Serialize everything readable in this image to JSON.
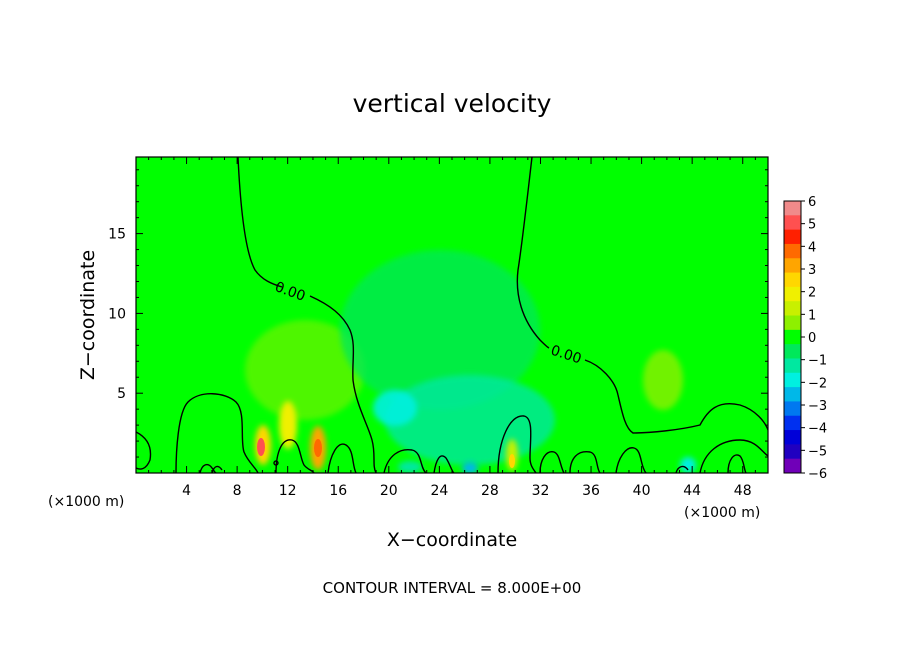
{
  "chart_data": {
    "type": "heatmap",
    "title": "vertical velocity",
    "xlabel": "X−coordinate",
    "ylabel": "Z−coordinate",
    "x_unit_left": "(×1000 m)",
    "x_unit_right": "(×1000 m)",
    "xlim": [
      0,
      50
    ],
    "ylim": [
      0,
      19.8
    ],
    "x_ticks": [
      4,
      8,
      12,
      16,
      20,
      24,
      28,
      32,
      36,
      40,
      44,
      48
    ],
    "y_ticks": [
      5,
      10,
      15
    ],
    "contour_labels": [
      "0.00",
      "0.00"
    ],
    "footer": "CONTOUR INTERVAL = 8.000E+00",
    "colorbar": {
      "range": [
        -6,
        6
      ],
      "ticks": [
        "6",
        "5",
        "4",
        "3",
        "2",
        "1",
        "0",
        "−1",
        "−2",
        "−3",
        "−4",
        "−5",
        "−6"
      ],
      "colors": [
        "#f08a8a",
        "#ff5050",
        "#ff2000",
        "#ff6a00",
        "#ffa500",
        "#ffd700",
        "#f0f000",
        "#c8f000",
        "#8ef000",
        "#00ff00",
        "#00e85a",
        "#00e8a0",
        "#00f0e0",
        "#00b8e8",
        "#0078f0",
        "#0030f0",
        "#0000d8",
        "#2000c0",
        "#7000b8"
      ]
    },
    "background_value": 0,
    "features": [
      {
        "x": 10.0,
        "z": 1.8,
        "value": 4.5
      },
      {
        "x": 12.0,
        "z": 2.5,
        "value": 2.5
      },
      {
        "x": 14.5,
        "z": 2.0,
        "value": 3.5
      },
      {
        "x": 13.0,
        "z": 4.5,
        "value": 1.5
      },
      {
        "x": 20.5,
        "z": 4.0,
        "value": -2.0
      },
      {
        "x": 25.0,
        "z": 3.5,
        "value": -1.0
      },
      {
        "x": 26.5,
        "z": 0.3,
        "value": -2.0
      },
      {
        "x": 30.0,
        "z": 1.2,
        "value": 2.0
      },
      {
        "x": 42.0,
        "z": 6.0,
        "value": 1.0
      },
      {
        "x": 43.0,
        "z": 0.5,
        "value": -1.5
      }
    ]
  }
}
